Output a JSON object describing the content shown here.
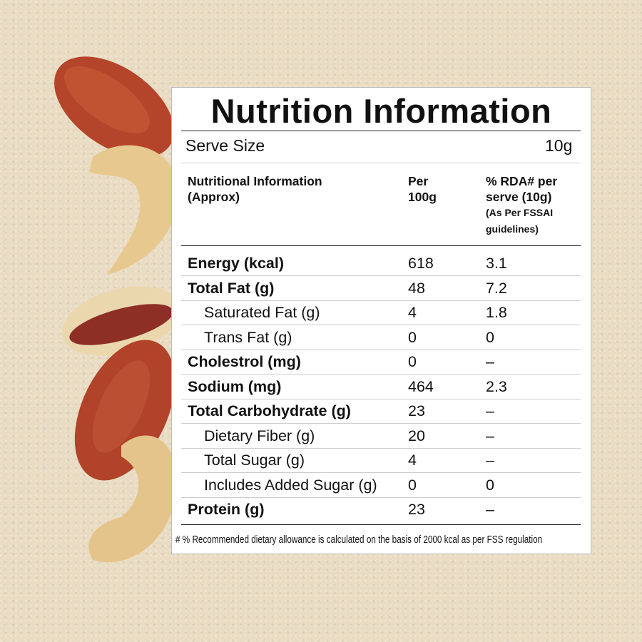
{
  "title": "Nutrition Information",
  "serve": {
    "label": "Serve Size",
    "value": "10g"
  },
  "header": {
    "col1": "Nutritional Information (Approx)",
    "col2": "Per 100g",
    "col3": "% RDA# per serve (10g)",
    "col3_note": "(As Per FSSAI guidelines)"
  },
  "rows": [
    {
      "name": "Energy (kcal)",
      "per100": "618",
      "rda": "3.1",
      "style": "bold"
    },
    {
      "name": "Total Fat (g)",
      "per100": "48",
      "rda": "7.2",
      "style": "bold"
    },
    {
      "name": "Saturated Fat (g)",
      "per100": "4",
      "rda": "1.8",
      "style": "indent"
    },
    {
      "name": "Trans Fat (g)",
      "per100": "0",
      "rda": "0",
      "style": "indent"
    },
    {
      "name": "Cholestrol (mg)",
      "per100": "0",
      "rda": "–",
      "style": "bold"
    },
    {
      "name": "Sodium (mg)",
      "per100": "464",
      "rda": "2.3",
      "style": "bold"
    },
    {
      "name": "Total Carbohydrate (g)",
      "per100": "23",
      "rda": "–",
      "style": "bold"
    },
    {
      "name": "Dietary Fiber (g)",
      "per100": "20",
      "rda": "–",
      "style": "indent"
    },
    {
      "name": "Total Sugar (g)",
      "per100": "4",
      "rda": "–",
      "style": "indent"
    },
    {
      "name": "Includes Added Sugar (g)",
      "per100": "0",
      "rda": "0",
      "style": "indent"
    },
    {
      "name": "Protein (g)",
      "per100": "23",
      "rda": "–",
      "style": "bold"
    }
  ],
  "footnote": "# % Recommended dietary allowance  is calculated on the basis of 2000 kcal as per FSS regulation"
}
